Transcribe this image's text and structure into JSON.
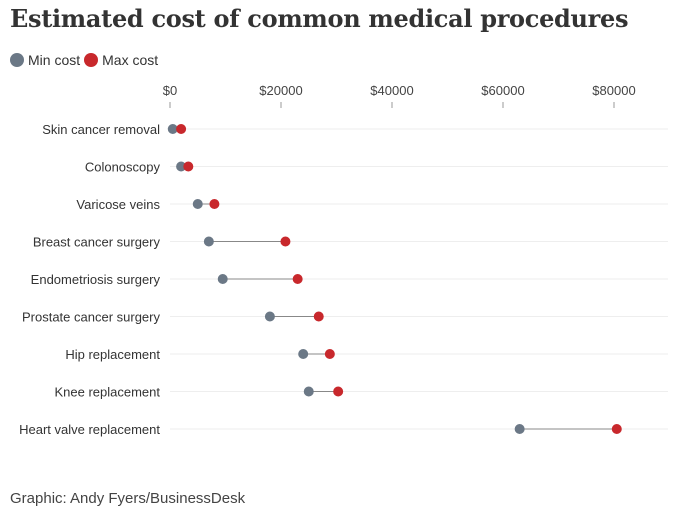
{
  "title": "Estimated cost of common medical procedures",
  "legend": [
    {
      "label": "Min cost",
      "color": "#6b7886"
    },
    {
      "label": "Max cost",
      "color": "#c8282c"
    }
  ],
  "footer": "Graphic: Andy Fyers/BusinessDesk",
  "chart_data": {
    "type": "dumbbell",
    "title": "Estimated cost of common medical procedures",
    "xlabel": "",
    "ylabel": "",
    "xlim": [
      0,
      90000
    ],
    "xticks": [
      0,
      20000,
      40000,
      60000,
      80000
    ],
    "xtick_labels": [
      "$0",
      "$20000",
      "$40000",
      "$60000",
      "$80000"
    ],
    "categories": [
      "Skin cancer removal",
      "Colonoscopy",
      "Varicose veins",
      "Breast cancer surgery",
      "Endometriosis surgery",
      "Prostate cancer surgery",
      "Hip replacement",
      "Knee replacement",
      "Heart valve replacement"
    ],
    "series": [
      {
        "name": "Min cost",
        "color": "#6b7886",
        "values": [
          500,
          2000,
          5000,
          7000,
          9500,
          18000,
          24000,
          25000,
          63000
        ]
      },
      {
        "name": "Max cost",
        "color": "#c8282c",
        "values": [
          2000,
          3300,
          8000,
          20800,
          23000,
          26800,
          28800,
          30300,
          80500
        ]
      }
    ],
    "grid": true,
    "legend_position": "top-left"
  }
}
